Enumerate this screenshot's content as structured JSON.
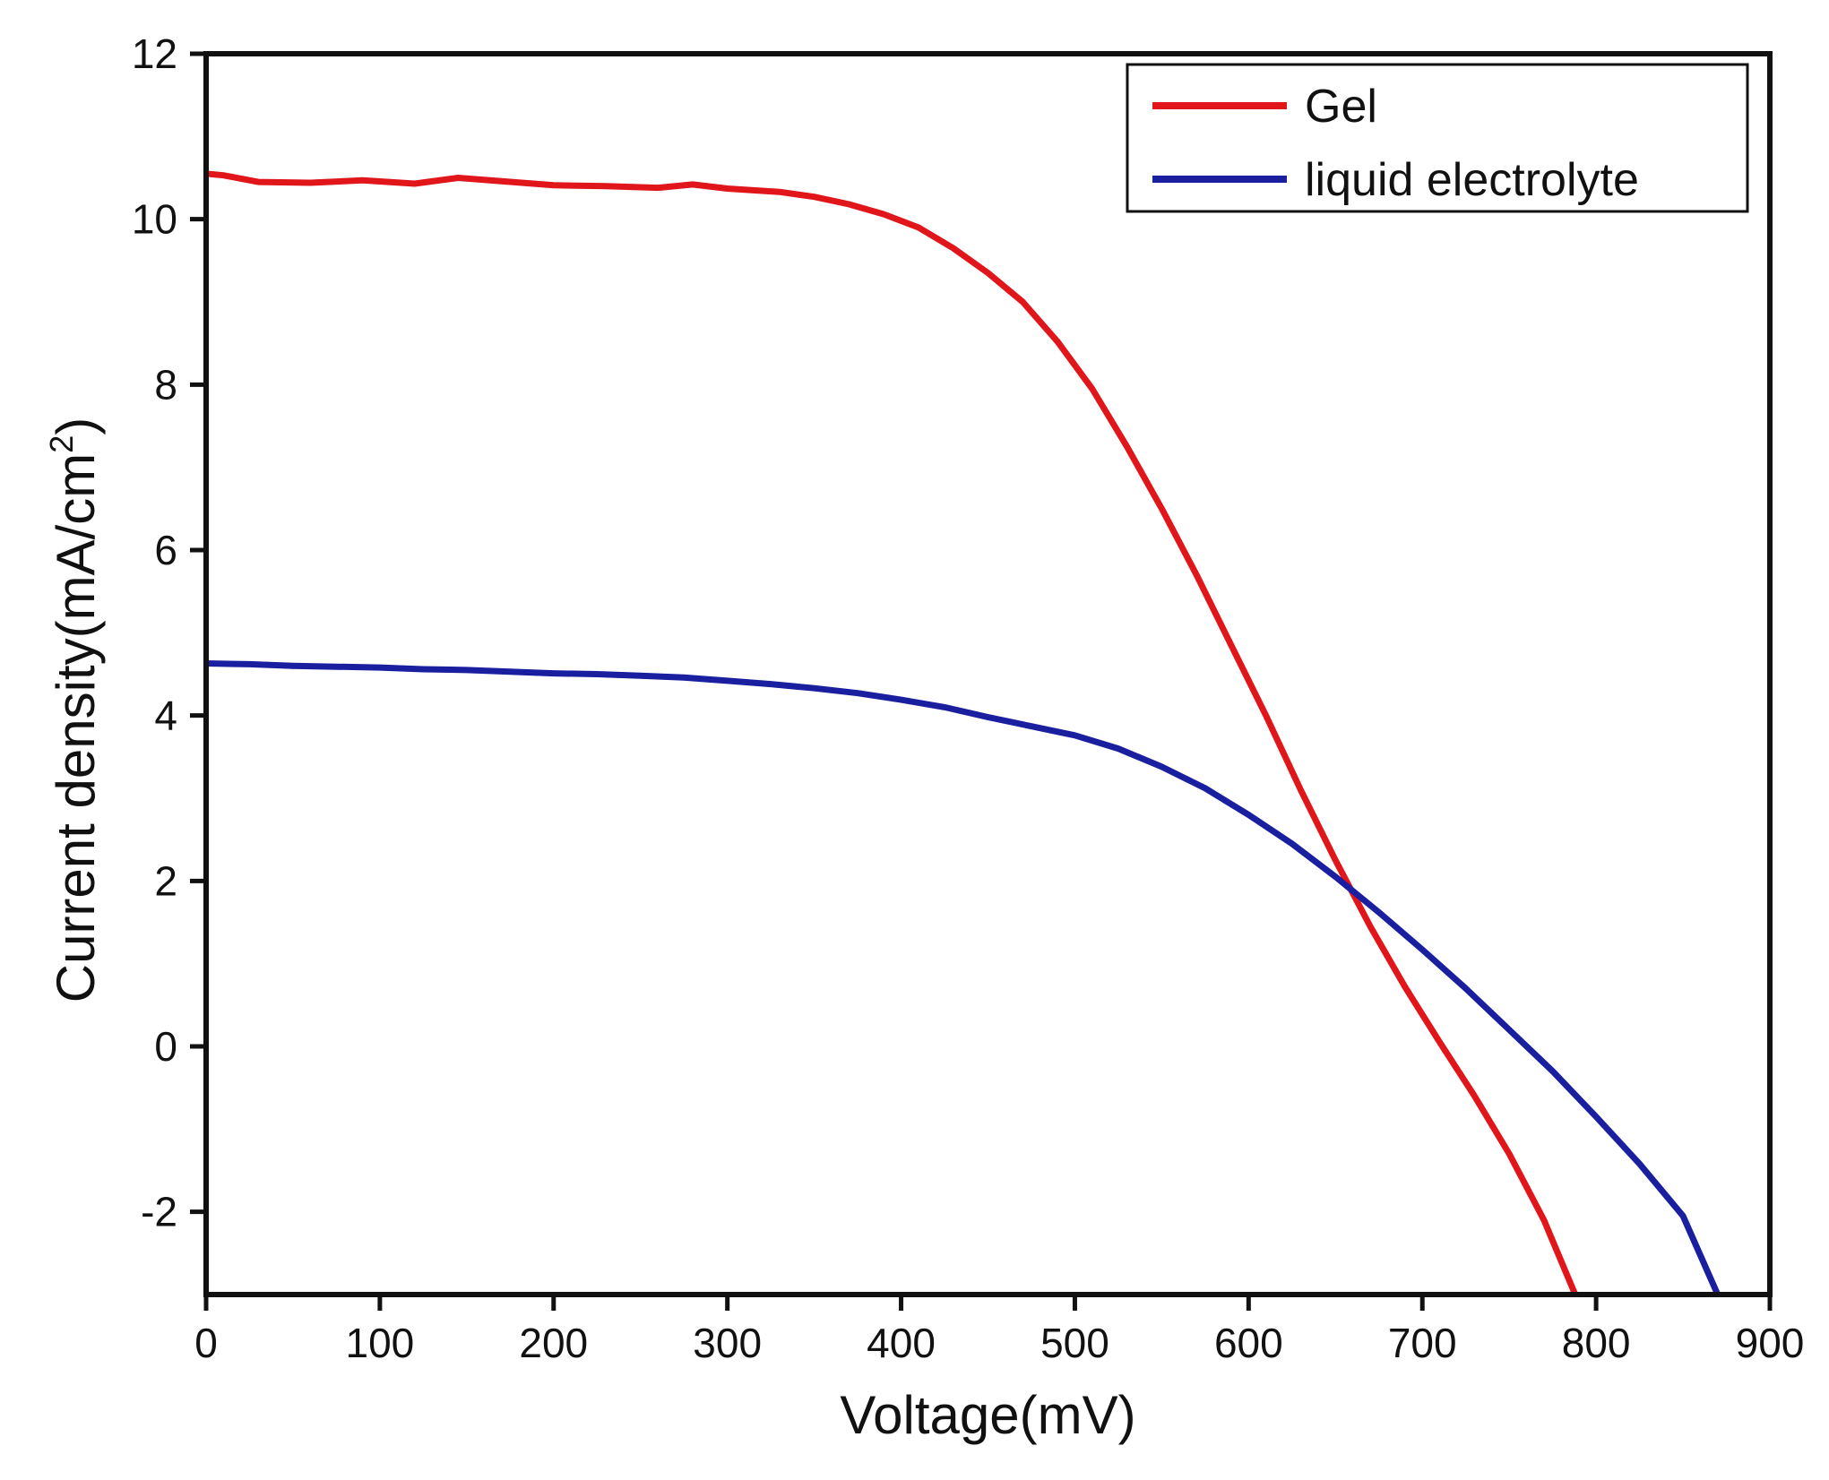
{
  "chart_data": {
    "type": "line",
    "title": "",
    "xlabel": "Voltage(mV)",
    "ylabel_main": "Current density(mA/cm",
    "ylabel_sup": "2",
    "ylabel_close": ")",
    "xlim": [
      0,
      900
    ],
    "ylim": [
      -3,
      12
    ],
    "xticks": [
      0,
      100,
      200,
      300,
      400,
      500,
      600,
      700,
      800,
      900
    ],
    "yticks": [
      -2,
      0,
      2,
      4,
      6,
      8,
      10,
      12
    ],
    "xtick_labels": [
      "0",
      "100",
      "200",
      "300",
      "400",
      "500",
      "600",
      "700",
      "800",
      "900"
    ],
    "ytick_labels": [
      "-2",
      "0",
      "2",
      "4",
      "6",
      "8",
      "10",
      "12"
    ],
    "grid": false,
    "legend_position": "top-right",
    "series": [
      {
        "name": "Gel",
        "color": "#e0161b",
        "points": [
          [
            0,
            10.55
          ],
          [
            10,
            10.53
          ],
          [
            30,
            10.45
          ],
          [
            60,
            10.44
          ],
          [
            90,
            10.47
          ],
          [
            120,
            10.43
          ],
          [
            145,
            10.5
          ],
          [
            170,
            10.46
          ],
          [
            200,
            10.41
          ],
          [
            230,
            10.4
          ],
          [
            260,
            10.38
          ],
          [
            280,
            10.42
          ],
          [
            300,
            10.37
          ],
          [
            330,
            10.33
          ],
          [
            350,
            10.27
          ],
          [
            370,
            10.18
          ],
          [
            390,
            10.06
          ],
          [
            410,
            9.9
          ],
          [
            430,
            9.65
          ],
          [
            450,
            9.35
          ],
          [
            470,
            9.0
          ],
          [
            490,
            8.52
          ],
          [
            510,
            7.95
          ],
          [
            530,
            7.25
          ],
          [
            550,
            6.5
          ],
          [
            570,
            5.7
          ],
          [
            590,
            4.85
          ],
          [
            610,
            4.0
          ],
          [
            630,
            3.1
          ],
          [
            650,
            2.25
          ],
          [
            670,
            1.45
          ],
          [
            690,
            0.72
          ],
          [
            710,
            0.05
          ],
          [
            730,
            -0.6
          ],
          [
            750,
            -1.3
          ],
          [
            770,
            -2.1
          ],
          [
            788,
            -3.0
          ]
        ]
      },
      {
        "name": "liquid electrolyte",
        "color": "#1a1fa0",
        "points": [
          [
            0,
            4.63
          ],
          [
            25,
            4.62
          ],
          [
            50,
            4.6
          ],
          [
            75,
            4.59
          ],
          [
            100,
            4.58
          ],
          [
            125,
            4.56
          ],
          [
            150,
            4.55
          ],
          [
            175,
            4.53
          ],
          [
            200,
            4.51
          ],
          [
            225,
            4.5
          ],
          [
            250,
            4.48
          ],
          [
            275,
            4.46
          ],
          [
            300,
            4.42
          ],
          [
            325,
            4.38
          ],
          [
            350,
            4.33
          ],
          [
            375,
            4.27
          ],
          [
            400,
            4.19
          ],
          [
            425,
            4.1
          ],
          [
            450,
            3.98
          ],
          [
            475,
            3.87
          ],
          [
            500,
            3.76
          ],
          [
            525,
            3.6
          ],
          [
            550,
            3.38
          ],
          [
            575,
            3.12
          ],
          [
            600,
            2.8
          ],
          [
            625,
            2.45
          ],
          [
            650,
            2.05
          ],
          [
            675,
            1.62
          ],
          [
            700,
            1.17
          ],
          [
            725,
            0.7
          ],
          [
            750,
            0.2
          ],
          [
            775,
            -0.3
          ],
          [
            800,
            -0.85
          ],
          [
            825,
            -1.42
          ],
          [
            850,
            -2.05
          ],
          [
            870,
            -3.0
          ]
        ]
      }
    ]
  }
}
